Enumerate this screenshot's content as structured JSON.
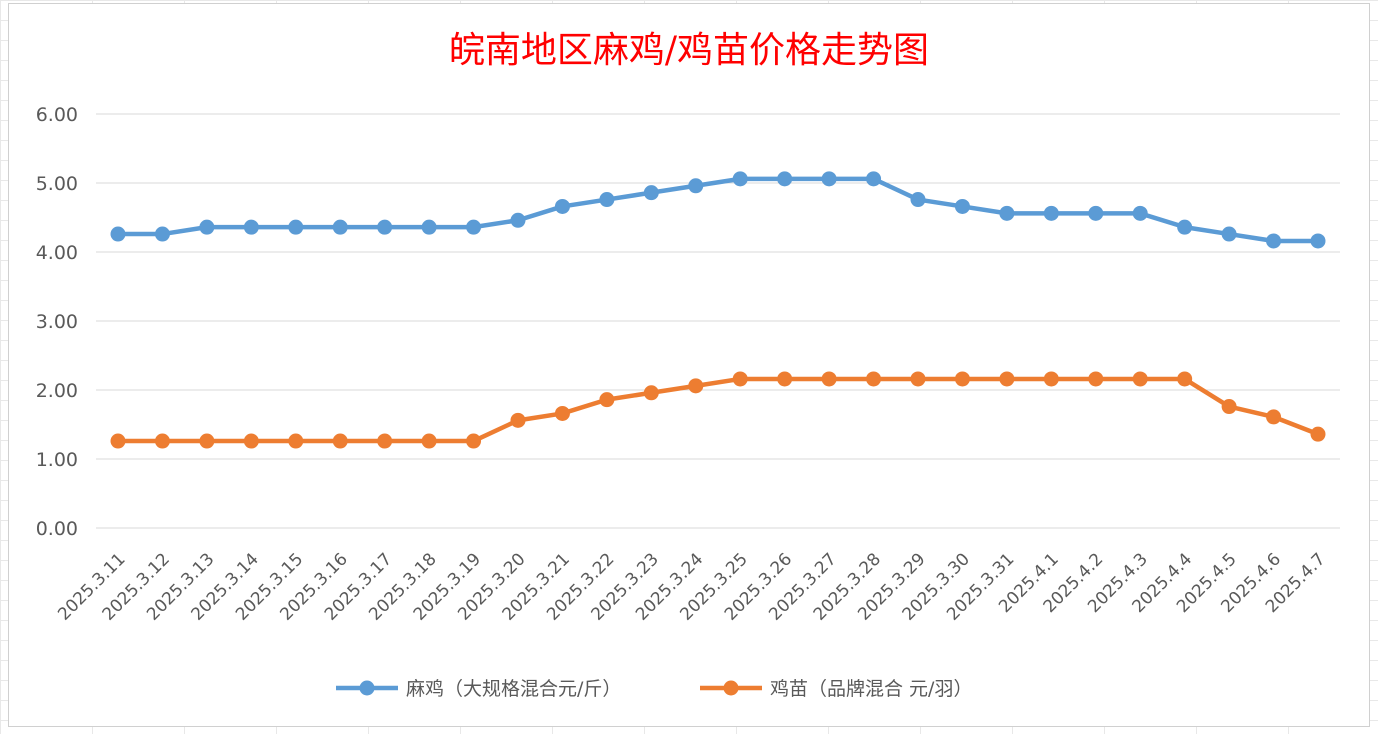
{
  "chart_data": {
    "type": "line",
    "title": "皖南地区麻鸡/鸡苗价格走势图",
    "categories": [
      "2025.3.11",
      "2025.3.12",
      "2025.3.13",
      "2025.3.14",
      "2025.3.15",
      "2025.3.16",
      "2025.3.17",
      "2025.3.18",
      "2025.3.19",
      "2025.3.20",
      "2025.3.21",
      "2025.3.22",
      "2025.3.23",
      "2025.3.24",
      "2025.3.25",
      "2025.3.26",
      "2025.3.27",
      "2025.3.28",
      "2025.3.29",
      "2025.3.30",
      "2025.3.31",
      "2025.4.1",
      "2025.4.2",
      "2025.4.3",
      "2025.4.4",
      "2025.4.5",
      "2025.4.6",
      "2025.4.7"
    ],
    "series": [
      {
        "name": "麻鸡（大规格混合元/斤）",
        "color": "#5B9BD5",
        "values": [
          4.26,
          4.26,
          4.36,
          4.36,
          4.36,
          4.36,
          4.36,
          4.36,
          4.36,
          4.46,
          4.66,
          4.76,
          4.86,
          4.96,
          5.06,
          5.06,
          5.06,
          5.06,
          4.76,
          4.66,
          4.56,
          4.56,
          4.56,
          4.56,
          4.36,
          4.26,
          4.16,
          4.16
        ]
      },
      {
        "name": "鸡苗（品牌混合 元/羽）",
        "color": "#ED7D31",
        "values": [
          1.26,
          1.26,
          1.26,
          1.26,
          1.26,
          1.26,
          1.26,
          1.26,
          1.26,
          1.56,
          1.66,
          1.86,
          1.96,
          2.06,
          2.16,
          2.16,
          2.16,
          2.16,
          2.16,
          2.16,
          2.16,
          2.16,
          2.16,
          2.16,
          2.16,
          1.76,
          1.61,
          1.36
        ]
      }
    ],
    "yticks": [
      "0.00",
      "1.00",
      "2.00",
      "3.00",
      "4.00",
      "5.00",
      "6.00"
    ],
    "ylim": [
      0,
      6
    ],
    "grid": true,
    "legend": "bottom",
    "title_color": "#FF0000"
  }
}
